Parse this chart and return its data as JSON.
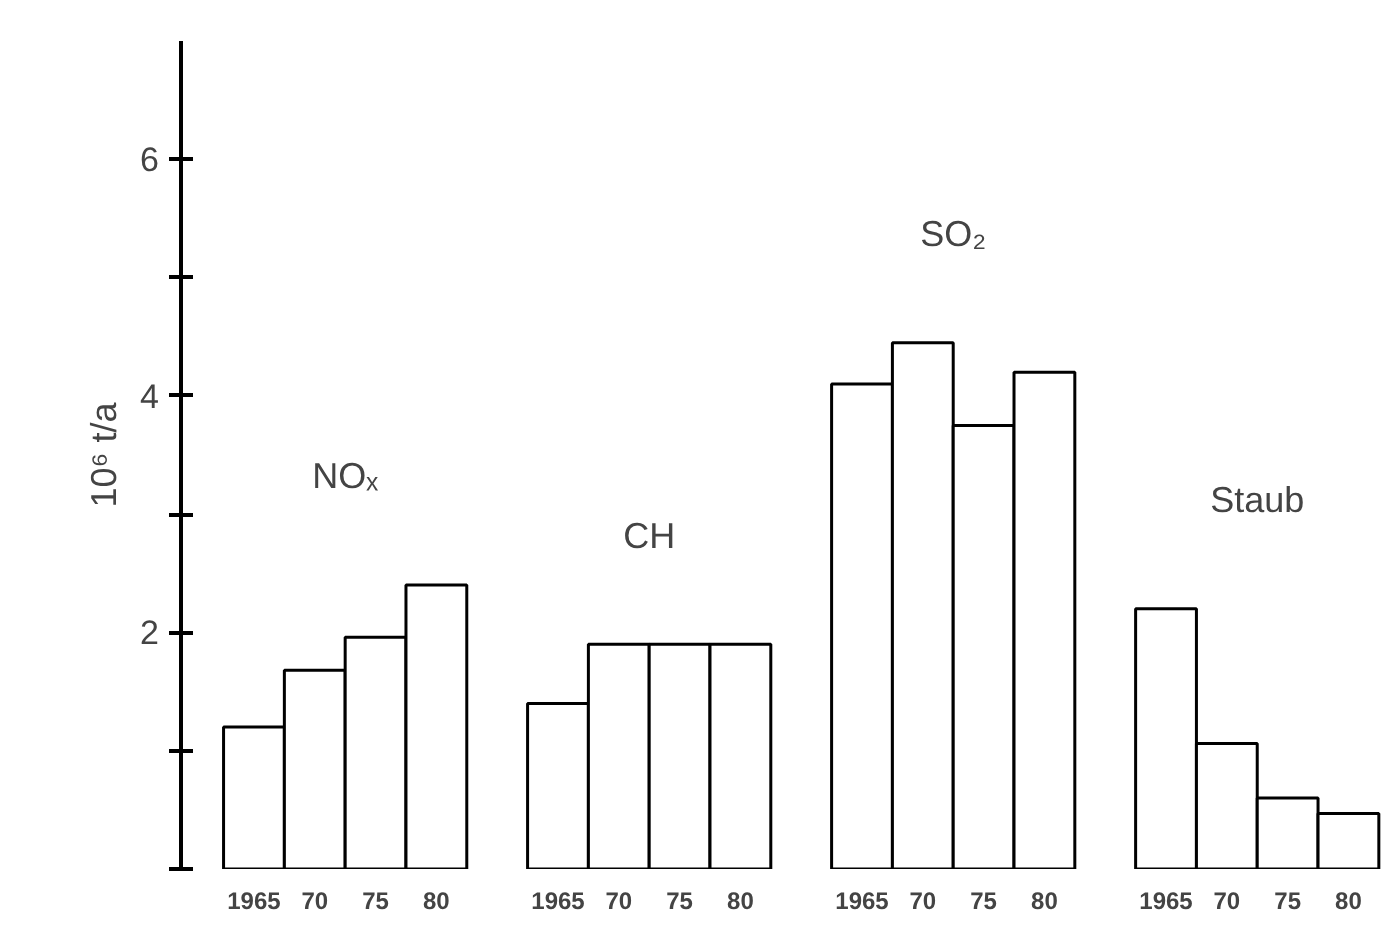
{
  "chart_data": {
    "type": "bar",
    "ylabel": "10⁶ t/a",
    "categories": [
      "1965",
      "70",
      "75",
      "80",
      null,
      "1965",
      "70",
      "75",
      "80",
      null,
      "1965",
      "70",
      "75",
      "80",
      null,
      "1965",
      "70",
      "75",
      "80"
    ],
    "series": [
      {
        "name": "NOₓ",
        "color": "#ffffff",
        "values": [
          1.2,
          1.68,
          1.96,
          2.4,
          null,
          null,
          null,
          null,
          null,
          null,
          null,
          null,
          null,
          null,
          null,
          null,
          null,
          null,
          null
        ]
      },
      {
        "name": "CH",
        "color": "#ffffff",
        "values": [
          null,
          null,
          null,
          null,
          null,
          1.4,
          1.9,
          1.9,
          1.9,
          null,
          null,
          null,
          null,
          null,
          null,
          null,
          null,
          null,
          null
        ]
      },
      {
        "name": "SO₂",
        "color": "#ffffff",
        "values": [
          null,
          null,
          null,
          null,
          null,
          null,
          null,
          null,
          null,
          null,
          4.1,
          4.45,
          3.75,
          4.2,
          null,
          null,
          null,
          null,
          null
        ]
      },
      {
        "name": "Staub",
        "color": "#ffffff",
        "values": [
          null,
          null,
          null,
          null,
          null,
          null,
          null,
          null,
          null,
          null,
          null,
          null,
          null,
          null,
          null,
          2.2,
          1.06,
          0.6,
          0.47
        ]
      }
    ],
    "ylim": [
      0,
      7
    ],
    "yticks": [
      2,
      4,
      6
    ],
    "grid": false,
    "legend": false
  }
}
